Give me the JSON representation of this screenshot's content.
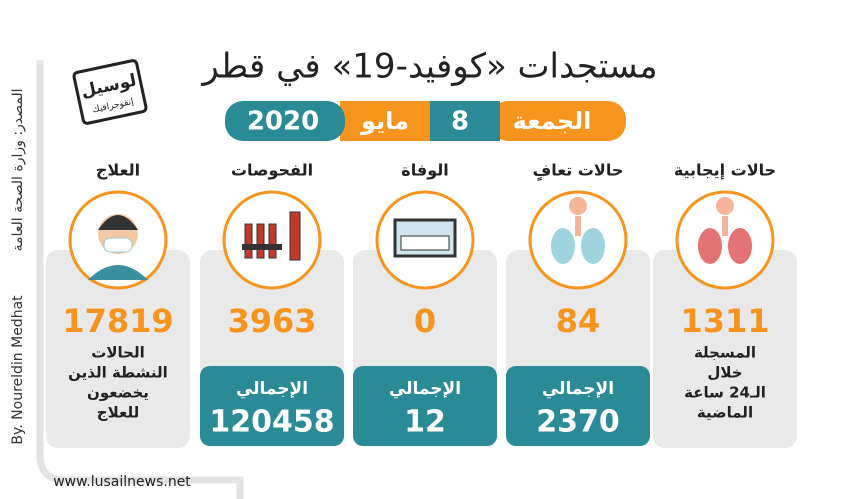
{
  "title": "مستجدات «كوفيد-19» في قطر",
  "logo": {
    "name": "لوسيل",
    "tagline": "إنفوجرافيك"
  },
  "date": {
    "day": "الجمعة",
    "date": 8,
    "month": "مايو",
    "year": 2020
  },
  "source": "المصدر: وزارة الصحة العامة",
  "credit": "By. Noureldin Medhat",
  "website": "www.lusailnews.net",
  "stats": [
    {
      "label": "حالات إيجابية",
      "value": 1311,
      "note": [
        "المسجلة",
        "خلال",
        "الـ24 ساعة",
        "الماضية"
      ]
    },
    {
      "label": "حالات تعافٍ",
      "value": 84,
      "total_label": "الإجمالي",
      "total": 2370
    },
    {
      "label": "الوفاة",
      "value": 0,
      "total_label": "الإجمالي",
      "total": 12
    },
    {
      "label": "الفحوصات",
      "value": 3963,
      "total_label": "الإجمالي",
      "total": 120458
    },
    {
      "label": "العلاج",
      "value": 17819,
      "note": [
        "الحالات",
        "النشطة الذين",
        "يخضعون",
        "للعلاج"
      ]
    }
  ]
}
